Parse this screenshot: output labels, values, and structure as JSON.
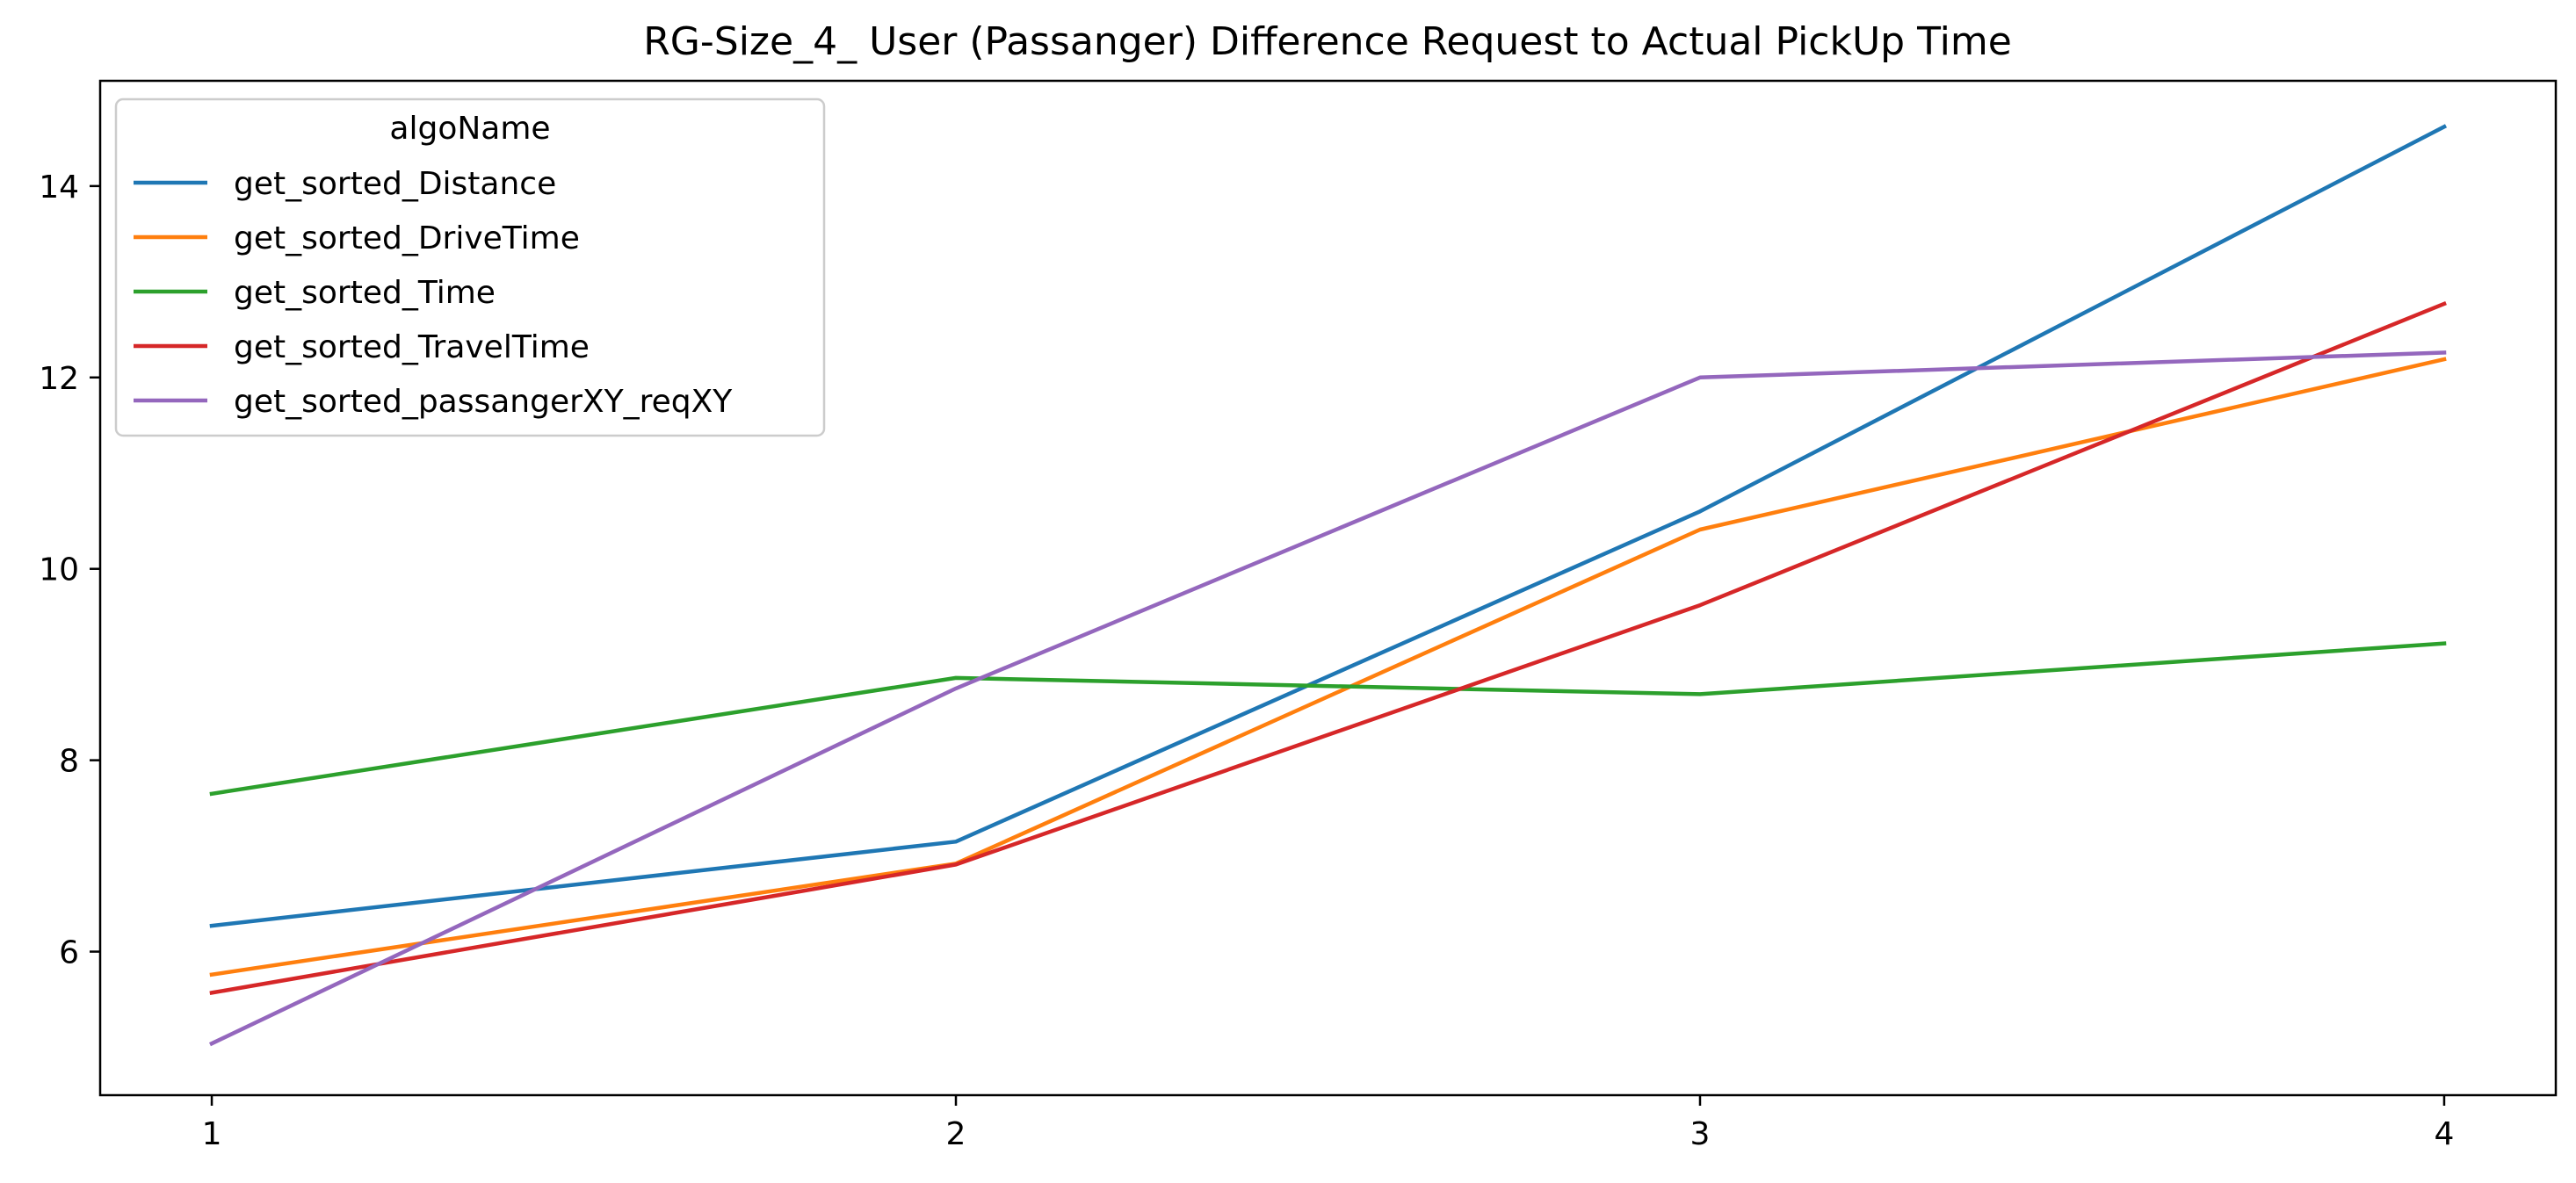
{
  "chart_data": {
    "type": "line",
    "title": "RG-Size_4_ User (Passanger) Difference Request to Actual PickUp Time",
    "xlabel": "",
    "ylabel": "",
    "x": [
      1,
      2,
      3,
      4
    ],
    "x_tick_labels": [
      "1",
      "2",
      "3",
      "4"
    ],
    "y_ticks": [
      6,
      8,
      10,
      12,
      14
    ],
    "xlim": [
      0.85,
      4.15
    ],
    "ylim": [
      4.5,
      15.1
    ],
    "grid": false,
    "legend": {
      "title": "algoName",
      "placement": "top-left"
    },
    "series": [
      {
        "name": "get_sorted_Distance",
        "color": "#1f77b4",
        "values": [
          6.27,
          7.15,
          10.6,
          14.62
        ]
      },
      {
        "name": "get_sorted_DriveTime",
        "color": "#ff7f0e",
        "values": [
          5.76,
          6.92,
          10.41,
          12.19
        ]
      },
      {
        "name": "get_sorted_Time",
        "color": "#2ca02c",
        "values": [
          7.65,
          8.86,
          8.69,
          9.22
        ]
      },
      {
        "name": "get_sorted_TravelTime",
        "color": "#d62728",
        "values": [
          5.57,
          6.91,
          9.62,
          12.77
        ]
      },
      {
        "name": "get_sorted_passangerXY_reqXY",
        "color": "#9467bd",
        "values": [
          5.04,
          8.75,
          12.0,
          12.26
        ]
      }
    ]
  }
}
